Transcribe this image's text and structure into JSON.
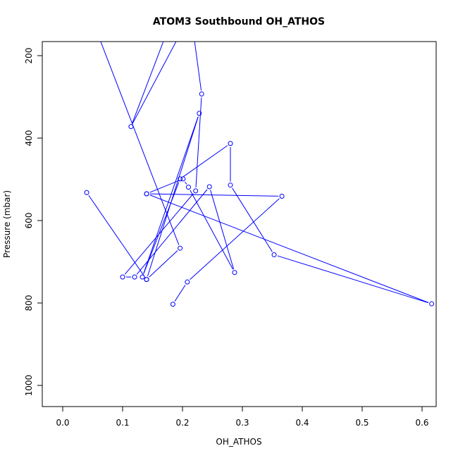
{
  "chart_data": {
    "type": "line",
    "title": "ATOM3 Southbound OH_ATHOS",
    "xlabel": "OH_ATHOS",
    "ylabel": "Pressure (mbar)",
    "xlim": [
      -0.035,
      0.64
    ],
    "ylim": [
      1050,
      160
    ],
    "y_reversed": true,
    "xticks": [
      0.0,
      0.1,
      0.2,
      0.3,
      0.4,
      0.5,
      0.6
    ],
    "xtick_labels": [
      "0.0",
      "0.1",
      "0.2",
      "0.3",
      "0.4",
      "0.5",
      "0.6"
    ],
    "yticks": [
      200,
      400,
      600,
      800,
      1000
    ],
    "ytick_labels": [
      "200",
      "400",
      "600",
      "800",
      "1000"
    ],
    "grid": false,
    "line_color": "#0000ff",
    "series": [
      {
        "x": [
          0.046,
          0.196,
          0.14,
          0.228,
          0.133,
          0.196,
          0.28,
          0.28,
          0.353,
          0.616,
          0.14,
          0.201,
          0.21,
          0.287,
          0.245,
          0.12,
          0.1,
          0.222,
          0.232,
          0.214,
          0.114,
          0.18
        ],
        "y": [
          100,
          667,
          743,
          340,
          737,
          499,
          413,
          514,
          683,
          802,
          535,
          499,
          519,
          726,
          518,
          737,
          737,
          528,
          293,
          98,
          372,
          120
        ],
        "extra_series": [
          {
            "x": [
              0.14,
              0.366,
              0.208,
              0.184
            ],
            "y": [
              535,
              541,
              749,
              803
            ]
          },
          {
            "x": [
              0.04,
              0.14
            ],
            "y": [
              532,
              743
            ]
          }
        ]
      }
    ]
  }
}
